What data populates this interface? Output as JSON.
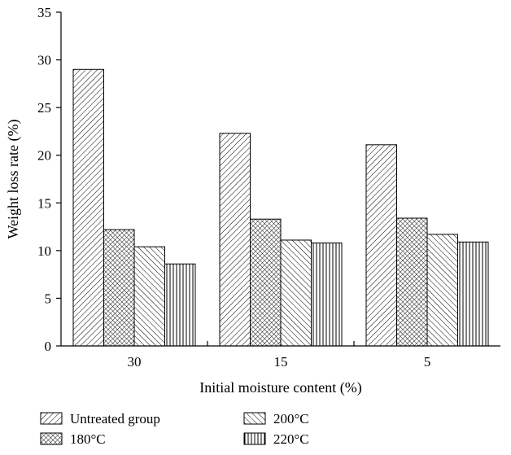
{
  "chart_data": {
    "type": "bar",
    "categories": [
      "30",
      "15",
      "5"
    ],
    "series": [
      {
        "name": "Untreated group",
        "values": [
          29.0,
          22.3,
          21.1
        ],
        "pattern": "diag-right"
      },
      {
        "name": "180°C",
        "values": [
          12.2,
          13.3,
          13.4
        ],
        "pattern": "crosshatch"
      },
      {
        "name": "200°C",
        "values": [
          10.4,
          11.1,
          11.7
        ],
        "pattern": "diag-left"
      },
      {
        "name": "220°C",
        "values": [
          8.6,
          10.8,
          10.9
        ],
        "pattern": "vertical"
      }
    ],
    "title": "",
    "xlabel": "Initial moisture content (%)",
    "ylabel": "Weight loss rate (%)",
    "ylim": [
      0,
      35
    ],
    "yticks": [
      "0",
      "5",
      "10",
      "15",
      "20",
      "25",
      "30",
      "35"
    ],
    "grid": false,
    "legend_position": "bottom",
    "colors": {
      "stroke": "#000000",
      "background": "#ffffff"
    }
  }
}
